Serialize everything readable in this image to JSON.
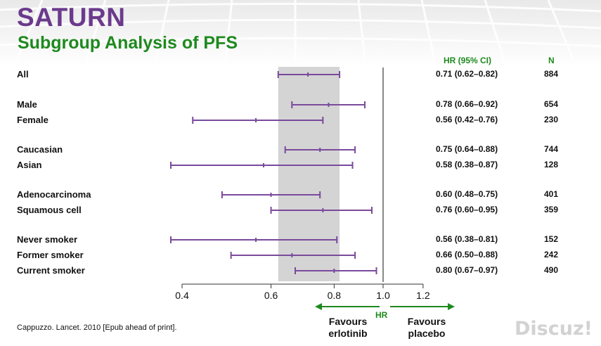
{
  "title": "SATURN",
  "subtitle": "Subgroup Analysis of PFS",
  "headers": {
    "hr": "HR (95% CI)",
    "n": "N"
  },
  "citation": "Cappuzzo. Lancet. 2010 [Epub ahead of print].",
  "axis": {
    "title": "HR",
    "ticks": [
      "0.4",
      "0.6",
      "0.8",
      "1.0",
      "1.2"
    ]
  },
  "favours": {
    "left": [
      "Favours",
      "erlotinib"
    ],
    "right": [
      "Favours",
      "placebo"
    ]
  },
  "watermark": "Discuz!",
  "colors": {
    "title": "#6b3a8c",
    "subtitle": "#1e8a1e",
    "bars": "#7a4a9c",
    "band": "#d4d4d4",
    "arrows": "#1e8a1e"
  },
  "chart_data": {
    "type": "forest",
    "x_scale": "log",
    "xlim": [
      0.4,
      1.2
    ],
    "reference_line": 1.0,
    "overall_ci_band": [
      0.62,
      0.82
    ],
    "rows": [
      {
        "label": "All",
        "hr": 0.71,
        "lo": 0.62,
        "hi": 0.82,
        "ci_text": "0.71 (0.62–0.82)",
        "n": "884"
      },
      {
        "label": "Male",
        "hr": 0.78,
        "lo": 0.66,
        "hi": 0.92,
        "ci_text": "0.78 (0.66–0.92)",
        "n": "654"
      },
      {
        "label": "Female",
        "hr": 0.56,
        "lo": 0.42,
        "hi": 0.76,
        "ci_text": "0.56 (0.42–0.76)",
        "n": "230"
      },
      {
        "label": "Caucasian",
        "hr": 0.75,
        "lo": 0.64,
        "hi": 0.88,
        "ci_text": "0.75 (0.64–0.88)",
        "n": "744"
      },
      {
        "label": "Asian",
        "hr": 0.58,
        "lo": 0.38,
        "hi": 0.87,
        "ci_text": "0.58 (0.38–0.87)",
        "n": "128"
      },
      {
        "label": "Adenocarcinoma",
        "hr": 0.6,
        "lo": 0.48,
        "hi": 0.75,
        "ci_text": "0.60 (0.48–0.75)",
        "n": "401"
      },
      {
        "label": "Squamous cell",
        "hr": 0.76,
        "lo": 0.6,
        "hi": 0.95,
        "ci_text": "0.76 (0.60–0.95)",
        "n": "359"
      },
      {
        "label": "Never smoker",
        "hr": 0.56,
        "lo": 0.38,
        "hi": 0.81,
        "ci_text": "0.56 (0.38–0.81)",
        "n": "152"
      },
      {
        "label": "Former smoker",
        "hr": 0.66,
        "lo": 0.5,
        "hi": 0.88,
        "ci_text": "0.66 (0.50–0.88)",
        "n": "242"
      },
      {
        "label": "Current smoker",
        "hr": 0.8,
        "lo": 0.67,
        "hi": 0.97,
        "ci_text": "0.80 (0.67–0.97)",
        "n": "490"
      }
    ]
  }
}
